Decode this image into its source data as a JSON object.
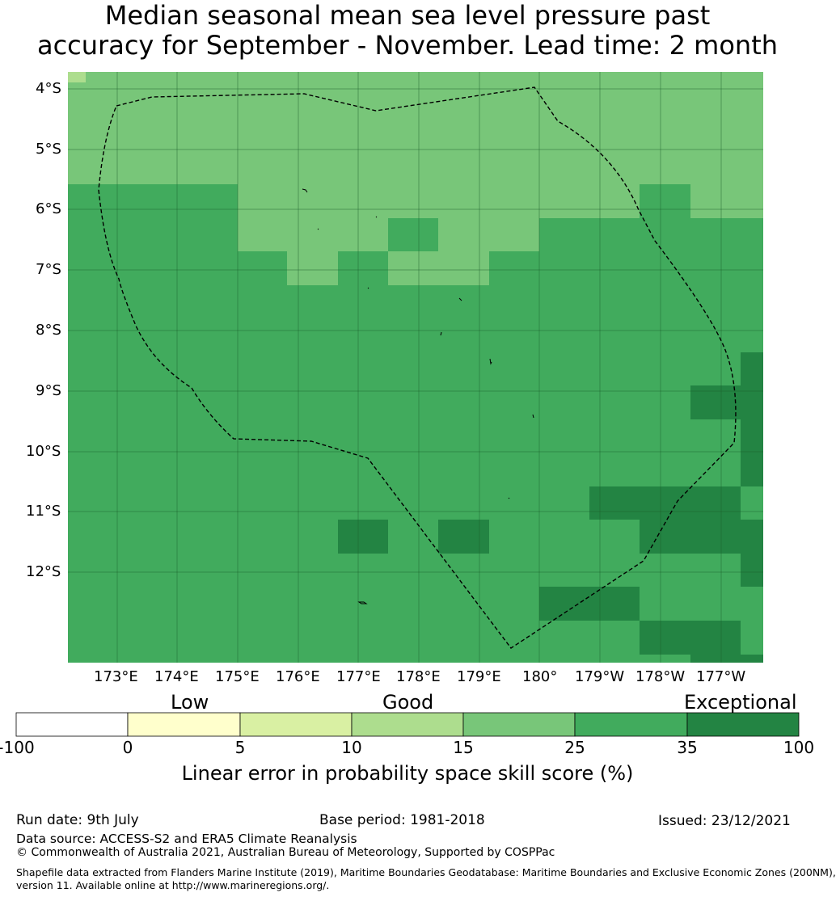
{
  "title": {
    "line1": "Median seasonal mean sea level pressure past",
    "line2": "accuracy for September - November. Lead time: 2 month"
  },
  "map": {
    "lat_labels": [
      "4°S",
      "5°S",
      "6°S",
      "7°S",
      "8°S",
      "9°S",
      "10°S",
      "11°S",
      "12°S"
    ],
    "lon_labels": [
      "173°E",
      "174°E",
      "175°E",
      "176°E",
      "177°E",
      "178°E",
      "179°E",
      "180°",
      "179°W",
      "178°W",
      "177°W"
    ],
    "colors": {
      "c15": "#78c679",
      "c25": "#41ab5d",
      "c35": "#238443",
      "c10": "#addd8e"
    },
    "boundary_style": "dashed black line (exclusive economic zone)",
    "skill_grid_categories": "10-15 (top-left corner), 15-25, 25-35, 35-100"
  },
  "colorbar": {
    "categories": [
      "Low",
      "Good",
      "Exceptional"
    ],
    "ticks": [
      "-100",
      "0",
      "5",
      "10",
      "15",
      "25",
      "35",
      "100"
    ],
    "colors": [
      "#ffffff",
      "#ffffcc",
      "#d9f0a3",
      "#addd8e",
      "#78c679",
      "#41ab5d",
      "#238443"
    ],
    "label": "Linear error in probability space skill score (%)"
  },
  "footer": {
    "run_date": "Run date: 9th July",
    "base_period": "Base period: 1981-2018",
    "issued": "Issued: 23/12/2021",
    "data_source": "Data source: ACCESS-S2 and ERA5 Climate Reanalysis",
    "copyright": "© Commonwealth of Australia 2021, Australian Bureau of Meteorology, Supported by COSPPac",
    "shapefile1": "Shapefile data extracted from Flanders Marine Institute (2019), Maritime Boundaries Geodatabase: Maritime Boundaries and Exclusive Economic Zones (200NM),",
    "shapefile2": "version 11. Available online at http://www.marineregions.org/."
  }
}
